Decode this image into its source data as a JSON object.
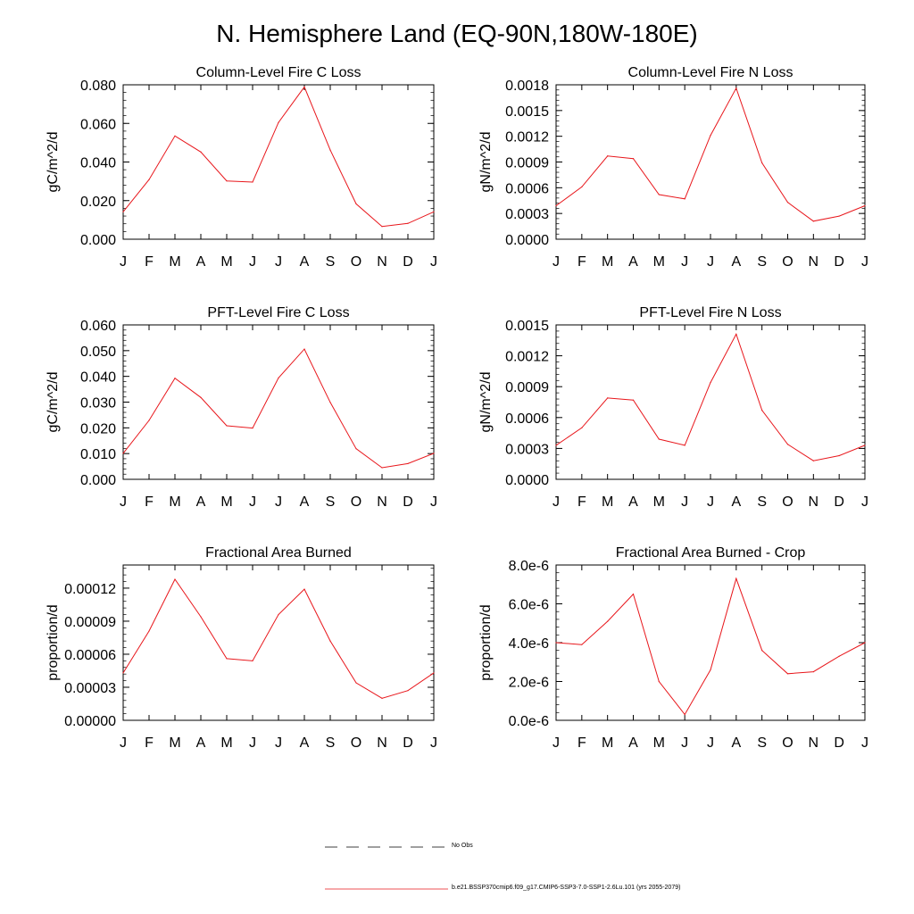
{
  "title": "N. Hemisphere Land (EQ-90N,180W-180E)",
  "month_labels": [
    "J",
    "F",
    "M",
    "A",
    "M",
    "J",
    "J",
    "A",
    "S",
    "O",
    "N",
    "D",
    "J"
  ],
  "legend": [
    {
      "label": "No Obs",
      "style": "dashed",
      "color": "#000000"
    },
    {
      "label": "b.e21.BSSP370cmip6.f09_g17.CMIP6-SSP3-7.0-SSP1-2.6Lu.101 (yrs 2055-2079)",
      "style": "solid",
      "color": "#e8161b"
    }
  ],
  "line_color": "#e8161b",
  "chart_data": [
    {
      "type": "line",
      "title": "Column-Level Fire C Loss",
      "ylabel": "gC/m^2/d",
      "ylim": [
        0,
        0.08
      ],
      "yticks": [
        0,
        0.02,
        0.04,
        0.06,
        0.08
      ],
      "ytick_labels": [
        "0.000",
        "0.020",
        "0.040",
        "0.060",
        "0.080"
      ],
      "categories": [
        "J",
        "F",
        "M",
        "A",
        "M",
        "J",
        "J",
        "A",
        "S",
        "O",
        "N",
        "D",
        "J"
      ],
      "series": [
        {
          "values": [
            0.0142,
            0.0309,
            0.0535,
            0.0452,
            0.0302,
            0.0296,
            0.0605,
            0.0789,
            0.0462,
            0.0183,
            0.0066,
            0.0082,
            0.0142
          ]
        }
      ]
    },
    {
      "type": "line",
      "title": "Column-Level Fire N Loss",
      "ylabel": "gN/m^2/d",
      "ylim": [
        0,
        0.0018
      ],
      "yticks": [
        0,
        0.0003,
        0.0006,
        0.0009,
        0.0012,
        0.0015,
        0.0018
      ],
      "ytick_labels": [
        "0.0000",
        "0.0003",
        "0.0006",
        "0.0009",
        "0.0012",
        "0.0015",
        "0.0018"
      ],
      "categories": [
        "J",
        "F",
        "M",
        "A",
        "M",
        "J",
        "J",
        "A",
        "S",
        "O",
        "N",
        "D",
        "J"
      ],
      "series": [
        {
          "values": [
            0.00039,
            0.00061,
            0.00097,
            0.00094,
            0.00052,
            0.00047,
            0.00121,
            0.00176,
            0.00089,
            0.00043,
            0.00021,
            0.00027,
            0.00039
          ]
        }
      ]
    },
    {
      "type": "line",
      "title": "PFT-Level Fire C Loss",
      "ylabel": "gC/m^2/d",
      "ylim": [
        0,
        0.06
      ],
      "yticks": [
        0,
        0.01,
        0.02,
        0.03,
        0.04,
        0.05,
        0.06
      ],
      "ytick_labels": [
        "0.000",
        "0.010",
        "0.020",
        "0.030",
        "0.040",
        "0.050",
        "0.060"
      ],
      "categories": [
        "J",
        "F",
        "M",
        "A",
        "M",
        "J",
        "J",
        "A",
        "S",
        "O",
        "N",
        "D",
        "J"
      ],
      "series": [
        {
          "values": [
            0.0101,
            0.0229,
            0.0393,
            0.0318,
            0.0208,
            0.0199,
            0.0394,
            0.0506,
            0.0299,
            0.0119,
            0.0045,
            0.0061,
            0.0101
          ]
        }
      ]
    },
    {
      "type": "line",
      "title": "PFT-Level Fire N Loss",
      "ylabel": "gN/m^2/d",
      "ylim": [
        0,
        0.0015
      ],
      "yticks": [
        0,
        0.0003,
        0.0006,
        0.0009,
        0.0012,
        0.0015
      ],
      "ytick_labels": [
        "0.0000",
        "0.0003",
        "0.0006",
        "0.0009",
        "0.0012",
        "0.0015"
      ],
      "categories": [
        "J",
        "F",
        "M",
        "A",
        "M",
        "J",
        "J",
        "A",
        "S",
        "O",
        "N",
        "D",
        "J"
      ],
      "series": [
        {
          "values": [
            0.00033,
            0.0005,
            0.00079,
            0.00077,
            0.00039,
            0.00033,
            0.00094,
            0.00141,
            0.00067,
            0.00034,
            0.00018,
            0.00023,
            0.00033
          ]
        }
      ]
    },
    {
      "type": "line",
      "title": "Fractional Area Burned",
      "ylabel": "proportion/d",
      "ylim": [
        0,
        0.000141
      ],
      "yticks": [
        0,
        3e-05,
        6e-05,
        9e-05,
        0.00012
      ],
      "ytick_labels": [
        "0.00000",
        "0.00003",
        "0.00006",
        "0.00009",
        "0.00012"
      ],
      "categories": [
        "J",
        "F",
        "M",
        "A",
        "M",
        "J",
        "J",
        "A",
        "S",
        "O",
        "N",
        "D",
        "J"
      ],
      "series": [
        {
          "values": [
            4.3e-05,
            8.1e-05,
            0.000128,
            9.4e-05,
            5.6e-05,
            5.4e-05,
            9.6e-05,
            0.000119,
            7.2e-05,
            3.4e-05,
            2e-05,
            2.7e-05,
            4.3e-05
          ]
        }
      ]
    },
    {
      "type": "line",
      "title": "Fractional Area Burned - Crop",
      "ylabel": "proportion/d",
      "ylim": [
        0,
        8e-06
      ],
      "yticks": [
        0,
        2e-06,
        4e-06,
        6e-06,
        8e-06
      ],
      "ytick_labels": [
        "0.0e-6",
        "2.0e-6",
        "4.0e-6",
        "6.0e-6",
        "8.0e-6"
      ],
      "categories": [
        "J",
        "F",
        "M",
        "A",
        "M",
        "J",
        "J",
        "A",
        "S",
        "O",
        "N",
        "D",
        "J"
      ],
      "series": [
        {
          "values": [
            4e-06,
            3.9e-06,
            5.1e-06,
            6.5e-06,
            2e-06,
            3e-07,
            2.6e-06,
            7.3e-06,
            3.6e-06,
            2.4e-06,
            2.5e-06,
            3.3e-06,
            4e-06
          ]
        }
      ]
    }
  ]
}
